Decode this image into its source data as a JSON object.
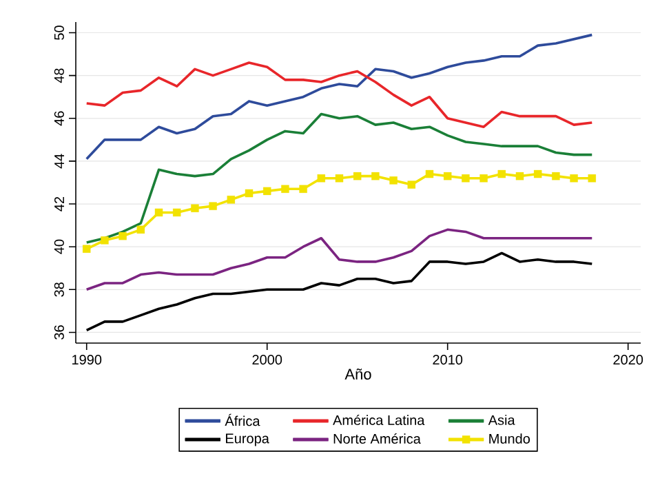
{
  "chart_data": {
    "type": "line",
    "xlabel": "Año",
    "x": [
      1990,
      1991,
      1992,
      1993,
      1994,
      1995,
      1996,
      1997,
      1998,
      1999,
      2000,
      2001,
      2002,
      2003,
      2004,
      2005,
      2006,
      2007,
      2008,
      2009,
      2010,
      2011,
      2012,
      2013,
      2014,
      2015,
      2016,
      2017,
      2018
    ],
    "series": [
      {
        "name": "África",
        "color": "#2e4b9b",
        "values": [
          44.1,
          45.0,
          45.0,
          45.0,
          45.6,
          45.3,
          45.5,
          46.1,
          46.2,
          46.8,
          46.6,
          46.8,
          47.0,
          47.4,
          47.6,
          47.5,
          48.3,
          48.2,
          47.9,
          48.1,
          48.4,
          48.6,
          48.7,
          48.9,
          48.9,
          49.4,
          49.5,
          49.7,
          49.9
        ]
      },
      {
        "name": "América Latina",
        "color": "#e8262a",
        "values": [
          46.7,
          46.6,
          47.2,
          47.3,
          47.9,
          47.5,
          48.3,
          48.0,
          48.3,
          48.6,
          48.4,
          47.8,
          47.8,
          47.7,
          48.0,
          48.2,
          47.7,
          47.1,
          46.6,
          47.0,
          46.0,
          45.8,
          45.6,
          46.3,
          46.1,
          46.1,
          46.1,
          45.7,
          45.8
        ]
      },
      {
        "name": "Asia",
        "color": "#1a7f37",
        "values": [
          40.2,
          40.4,
          40.7,
          41.1,
          43.6,
          43.4,
          43.3,
          43.4,
          44.1,
          44.5,
          45.0,
          45.4,
          45.3,
          46.2,
          46.0,
          46.1,
          45.7,
          45.8,
          45.5,
          45.6,
          45.2,
          44.9,
          44.8,
          44.7,
          44.7,
          44.7,
          44.4,
          44.3,
          44.3
        ]
      },
      {
        "name": "Europa",
        "color": "#000000",
        "values": [
          36.1,
          36.5,
          36.5,
          36.8,
          37.1,
          37.3,
          37.6,
          37.8,
          37.8,
          37.9,
          38.0,
          38.0,
          38.0,
          38.3,
          38.2,
          38.5,
          38.5,
          38.3,
          38.4,
          39.3,
          39.3,
          39.2,
          39.3,
          39.7,
          39.3,
          39.4,
          39.3,
          39.3,
          39.2
        ]
      },
      {
        "name": "Norte América",
        "color": "#7b2481",
        "values": [
          38.0,
          38.3,
          38.3,
          38.7,
          38.8,
          38.7,
          38.7,
          38.7,
          39.0,
          39.2,
          39.5,
          39.5,
          40.0,
          40.4,
          39.4,
          39.3,
          39.3,
          39.5,
          39.8,
          40.5,
          40.8,
          40.7,
          40.4,
          40.4,
          40.4,
          40.4,
          40.4,
          40.4,
          40.4
        ]
      },
      {
        "name": "Mundo",
        "color": "#f2e200",
        "marker": "square",
        "values": [
          39.9,
          40.3,
          40.5,
          40.8,
          41.6,
          41.6,
          41.8,
          41.9,
          42.2,
          42.5,
          42.6,
          42.7,
          42.7,
          43.2,
          43.2,
          43.3,
          43.3,
          43.1,
          42.9,
          43.4,
          43.3,
          43.2,
          43.2,
          43.4,
          43.3,
          43.4,
          43.3,
          43.2,
          43.2
        ]
      }
    ],
    "xlim": [
      1989.4,
      2020.7
    ],
    "ylim": [
      35.5,
      50.5
    ],
    "xticks": [
      1990,
      2000,
      2010,
      2020
    ],
    "yticks": [
      36,
      38,
      40,
      42,
      44,
      46,
      48,
      50
    ],
    "grid": "y",
    "legend": "bottom",
    "line_style": "solid"
  }
}
